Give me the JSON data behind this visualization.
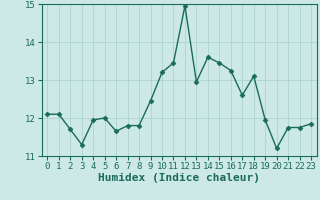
{
  "x": [
    0,
    1,
    2,
    3,
    4,
    5,
    6,
    7,
    8,
    9,
    10,
    11,
    12,
    13,
    14,
    15,
    16,
    17,
    18,
    19,
    20,
    21,
    22,
    23
  ],
  "y": [
    12.1,
    12.1,
    11.7,
    11.3,
    11.95,
    12.0,
    11.65,
    11.8,
    11.8,
    12.45,
    13.2,
    13.45,
    14.95,
    12.95,
    13.6,
    13.45,
    13.25,
    12.6,
    13.1,
    11.95,
    11.2,
    11.75,
    11.75,
    11.85
  ],
  "line_color": "#1a6b5a",
  "marker": "D",
  "marker_size": 2.5,
  "bg_color": "#cce9e7",
  "grid_color": "#aed4d0",
  "tick_color": "#1a6b5a",
  "xlabel": "Humidex (Indice chaleur)",
  "xlabel_fontsize": 8,
  "ylim": [
    11,
    15
  ],
  "xlim": [
    -0.5,
    23.5
  ],
  "yticks": [
    11,
    12,
    13,
    14,
    15
  ],
  "xticks": [
    0,
    1,
    2,
    3,
    4,
    5,
    6,
    7,
    8,
    9,
    10,
    11,
    12,
    13,
    14,
    15,
    16,
    17,
    18,
    19,
    20,
    21,
    22,
    23
  ],
  "tick_fontsize": 6.5,
  "line_width": 1.0
}
